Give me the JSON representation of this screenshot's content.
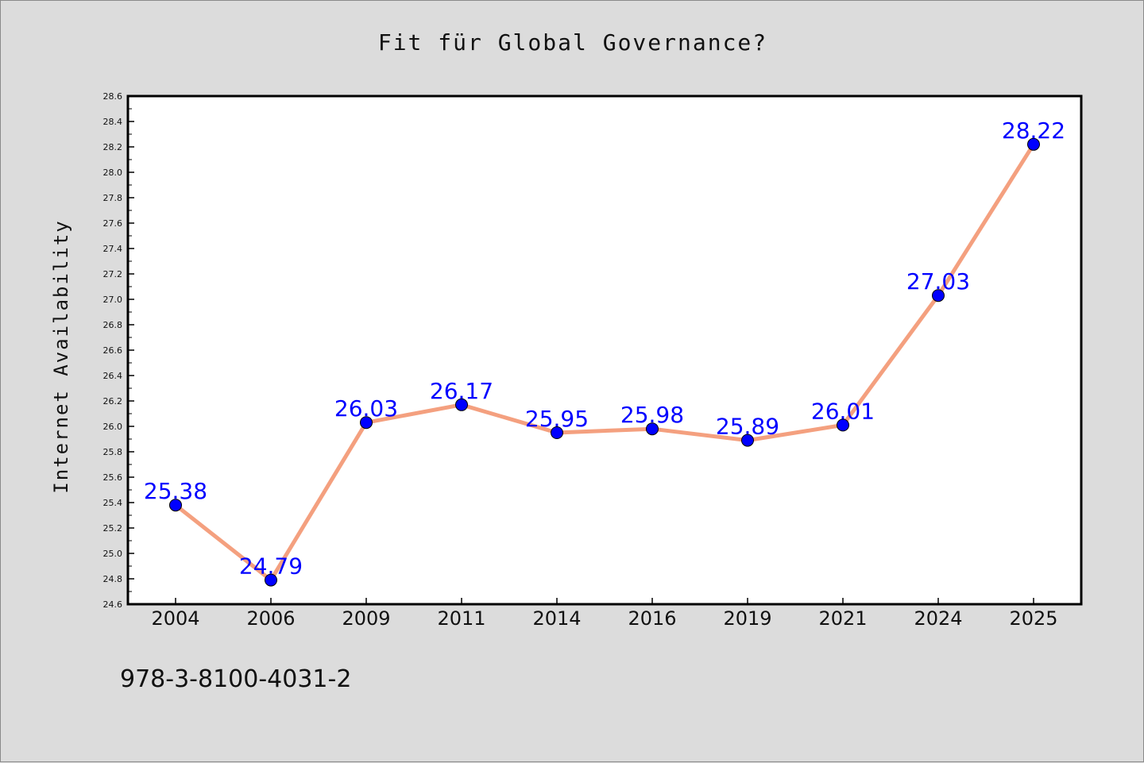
{
  "chart_data": {
    "type": "line",
    "title": "Fit für Global Governance?",
    "xlabel": "",
    "ylabel": "Internet Availability",
    "categories": [
      "2004",
      "2006",
      "2009",
      "2011",
      "2014",
      "2016",
      "2019",
      "2021",
      "2024",
      "2025"
    ],
    "series": [
      {
        "values": [
          25.38,
          24.79,
          26.03,
          26.17,
          25.95,
          25.98,
          25.89,
          26.01,
          27.03,
          28.22
        ],
        "data_labels": [
          "25.38",
          "24.79",
          "26.03",
          "26.17",
          "25.95",
          "25.98",
          "25.89",
          "26.01",
          "27.03",
          "28.22"
        ]
      }
    ],
    "ylim": [
      24.6,
      28.6
    ],
    "yticks": [
      "24.6",
      "24.8",
      "25.0",
      "25.2",
      "25.4",
      "25.6",
      "25.8",
      "26.0",
      "26.2",
      "26.4",
      "26.6",
      "26.8",
      "27.0",
      "27.2",
      "27.4",
      "27.6",
      "27.8",
      "28.0",
      "28.2",
      "28.4",
      "28.6"
    ],
    "grid": false,
    "colors": {
      "line": "#f4a07f",
      "marker": "#0000ff",
      "data_label": "#0000ff",
      "background": "#dcdcdc",
      "plot_area": "#ffffff"
    },
    "annotation": "978-3-8100-4031-2"
  }
}
